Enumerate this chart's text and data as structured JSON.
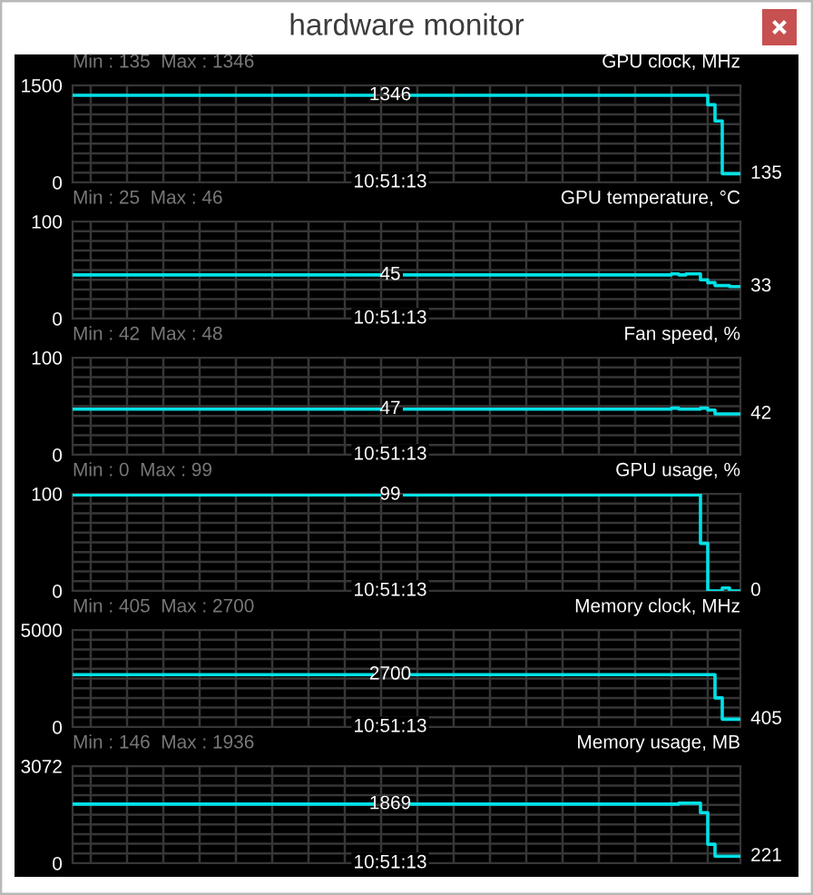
{
  "chart_data": [
    {
      "type": "other",
      "title": "hardware monitor"
    },
    {
      "type": "step",
      "title": "GPU clock, MHz",
      "subtitle": "Min : 135  Max : 1346",
      "color": "#00e1e6",
      "grid": true,
      "tick_labels": "y",
      "ylim": [
        0,
        1500
      ],
      "yticks": [
        0,
        {
          "value": 150,
          "label": null
        },
        {
          "value": 300,
          "label": null
        },
        {
          "value": 450,
          "label": null
        },
        {
          "value": 600,
          "label": null
        },
        {
          "value": 750,
          "label": null
        },
        {
          "value": 900,
          "label": null
        },
        {
          "value": 1050,
          "label": null
        },
        {
          "value": 1200,
          "label": null
        },
        {
          "value": 1350,
          "label": null
        },
        1500
      ],
      "categories": [
        null,
        null,
        null,
        null,
        null,
        null,
        null,
        null,
        null,
        null,
        null,
        null,
        null,
        null,
        null,
        null,
        null,
        null,
        null,
        null,
        null,
        null,
        null,
        null,
        null,
        null,
        null,
        null,
        null,
        null,
        null,
        null,
        null,
        null,
        null,
        null,
        null,
        null,
        null,
        null,
        null,
        null,
        null,
        null,
        null,
        null,
        null,
        null,
        null,
        null,
        null,
        null,
        null,
        null,
        null,
        null,
        null,
        null,
        null,
        null,
        null,
        null,
        null,
        null,
        null,
        null,
        null,
        null,
        null,
        null,
        null,
        null,
        null,
        null,
        null,
        null,
        null,
        null,
        null,
        null,
        null,
        null,
        null,
        null,
        null,
        null,
        null,
        null,
        null,
        null,
        null,
        null,
        null
      ],
      "values": [
        1346,
        1346,
        1346,
        1346,
        1346,
        1346,
        1346,
        1346,
        1346,
        1346,
        1346,
        1346,
        1346,
        1346,
        1346,
        1346,
        1346,
        1346,
        1346,
        1346,
        1346,
        1346,
        1346,
        1346,
        1346,
        1346,
        1346,
        1346,
        1346,
        1346,
        1346,
        1346,
        1346,
        1346,
        1346,
        1346,
        1346,
        1346,
        1346,
        1346,
        1346,
        1346,
        null,
        null,
        null,
        null,
        null,
        1346,
        1346,
        1346,
        1346,
        1346,
        1346,
        1346,
        1346,
        1346,
        1346,
        1346,
        1346,
        1346,
        1346,
        1346,
        1346,
        1346,
        1346,
        1346,
        1346,
        1346,
        1346,
        1346,
        1346,
        1346,
        1346,
        1346,
        1346,
        1346,
        1346,
        1346,
        1346,
        1346,
        1346,
        1346,
        1346,
        1346,
        1346,
        1346,
        1346,
        1346,
        1200,
        950,
        135,
        135,
        135
      ],
      "value_labels": [
        null,
        null,
        null,
        null,
        null,
        null,
        null,
        null,
        null,
        null,
        null,
        null,
        null,
        null,
        null,
        null,
        null,
        null,
        null,
        null,
        null,
        null,
        null,
        null,
        null,
        null,
        null,
        null,
        null,
        null,
        null,
        null,
        null,
        null,
        null,
        null,
        null,
        null,
        null,
        null,
        null,
        null,
        null,
        null,
        null,
        null,
        null,
        null,
        null,
        null,
        null,
        null,
        null,
        null,
        null,
        null,
        null,
        null,
        null,
        null,
        null,
        null,
        null,
        null,
        null,
        null,
        null,
        null,
        null,
        null,
        null,
        null,
        null,
        null,
        null,
        null,
        null,
        null,
        null,
        null,
        null,
        null,
        null,
        null,
        null,
        null,
        null,
        null,
        null,
        null,
        null,
        null,
        "135"
      ],
      "annotations": [
        "1346",
        "10:51:13"
      ]
    },
    {
      "type": "step",
      "title": "GPU temperature, °C",
      "subtitle": "Min : 25  Max : 46",
      "color": "#00e1e6",
      "grid": true,
      "tick_labels": "y",
      "ylim": [
        0,
        100
      ],
      "yticks": [
        0,
        {
          "value": 10,
          "label": null
        },
        {
          "value": 20,
          "label": null
        },
        {
          "value": 30,
          "label": null
        },
        {
          "value": 40,
          "label": null
        },
        {
          "value": 50,
          "label": null
        },
        {
          "value": 60,
          "label": null
        },
        {
          "value": 70,
          "label": null
        },
        {
          "value": 80,
          "label": null
        },
        {
          "value": 90,
          "label": null
        },
        100
      ],
      "categories": [
        null,
        null,
        null,
        null,
        null,
        null,
        null,
        null,
        null,
        null,
        null,
        null,
        null,
        null,
        null,
        null,
        null,
        null,
        null,
        null,
        null,
        null,
        null,
        null,
        null,
        null,
        null,
        null,
        null,
        null,
        null,
        null,
        null,
        null,
        null,
        null,
        null,
        null,
        null,
        null,
        null,
        null,
        null,
        null,
        null,
        null,
        null,
        null,
        null,
        null,
        null,
        null,
        null,
        null,
        null,
        null,
        null,
        null,
        null,
        null,
        null,
        null,
        null,
        null,
        null,
        null,
        null,
        null,
        null,
        null,
        null,
        null,
        null,
        null,
        null,
        null,
        null,
        null,
        null,
        null,
        null,
        null,
        null,
        null,
        null,
        null,
        null,
        null,
        null,
        null,
        null,
        null,
        null
      ],
      "values": [
        45,
        45,
        45,
        45,
        45,
        45,
        45,
        45,
        45,
        45,
        45,
        45,
        45,
        45,
        45,
        45,
        45,
        45,
        45,
        45,
        45,
        45,
        45,
        45,
        45,
        45,
        45,
        45,
        45,
        45,
        45,
        45,
        45,
        45,
        45,
        45,
        45,
        45,
        45,
        45,
        45,
        45,
        45,
        null,
        null,
        null,
        45,
        45,
        45,
        45,
        45,
        45,
        45,
        45,
        45,
        45,
        45,
        45,
        45,
        45,
        45,
        45,
        45,
        45,
        45,
        45,
        45,
        45,
        45,
        45,
        45,
        45,
        45,
        45,
        45,
        45,
        45,
        45,
        45,
        45,
        45,
        45,
        45,
        46,
        45,
        46,
        46,
        40,
        37,
        34,
        34,
        33,
        33
      ],
      "value_labels": [
        null,
        null,
        null,
        null,
        null,
        null,
        null,
        null,
        null,
        null,
        null,
        null,
        null,
        null,
        null,
        null,
        null,
        null,
        null,
        null,
        null,
        null,
        null,
        null,
        null,
        null,
        null,
        null,
        null,
        null,
        null,
        null,
        null,
        null,
        null,
        null,
        null,
        null,
        null,
        null,
        null,
        null,
        null,
        null,
        null,
        null,
        null,
        null,
        null,
        null,
        null,
        null,
        null,
        null,
        null,
        null,
        null,
        null,
        null,
        null,
        null,
        null,
        null,
        null,
        null,
        null,
        null,
        null,
        null,
        null,
        null,
        null,
        null,
        null,
        null,
        null,
        null,
        null,
        null,
        null,
        null,
        null,
        null,
        null,
        null,
        null,
        null,
        null,
        null,
        null,
        null,
        null,
        "33"
      ],
      "annotations": [
        "45",
        "10:51:13"
      ]
    },
    {
      "type": "step",
      "title": "Fan speed, %",
      "subtitle": "Min : 42  Max : 48",
      "color": "#00e1e6",
      "grid": true,
      "tick_labels": "y",
      "ylim": [
        0,
        100
      ],
      "yticks": [
        0,
        {
          "value": 10,
          "label": null
        },
        {
          "value": 20,
          "label": null
        },
        {
          "value": 30,
          "label": null
        },
        {
          "value": 40,
          "label": null
        },
        {
          "value": 50,
          "label": null
        },
        {
          "value": 60,
          "label": null
        },
        {
          "value": 70,
          "label": null
        },
        {
          "value": 80,
          "label": null
        },
        {
          "value": 90,
          "label": null
        },
        100
      ],
      "categories": [
        null,
        null,
        null,
        null,
        null,
        null,
        null,
        null,
        null,
        null,
        null,
        null,
        null,
        null,
        null,
        null,
        null,
        null,
        null,
        null,
        null,
        null,
        null,
        null,
        null,
        null,
        null,
        null,
        null,
        null,
        null,
        null,
        null,
        null,
        null,
        null,
        null,
        null,
        null,
        null,
        null,
        null,
        null,
        null,
        null,
        null,
        null,
        null,
        null,
        null,
        null,
        null,
        null,
        null,
        null,
        null,
        null,
        null,
        null,
        null,
        null,
        null,
        null,
        null,
        null,
        null,
        null,
        null,
        null,
        null,
        null,
        null,
        null,
        null,
        null,
        null,
        null,
        null,
        null,
        null,
        null,
        null,
        null,
        null,
        null,
        null,
        null,
        null,
        null,
        null,
        null,
        null,
        null
      ],
      "values": [
        47,
        47,
        47,
        47,
        47,
        47,
        47,
        47,
        47,
        47,
        47,
        47,
        47,
        47,
        47,
        47,
        47,
        47,
        47,
        47,
        47,
        47,
        47,
        47,
        47,
        47,
        47,
        47,
        47,
        47,
        47,
        47,
        47,
        47,
        47,
        47,
        47,
        47,
        47,
        47,
        47,
        47,
        47,
        null,
        null,
        null,
        47,
        47,
        47,
        47,
        47,
        47,
        47,
        47,
        47,
        47,
        47,
        47,
        47,
        47,
        47,
        47,
        47,
        47,
        47,
        47,
        47,
        47,
        47,
        47,
        47,
        47,
        47,
        47,
        47,
        47,
        47,
        47,
        47,
        47,
        47,
        47,
        47,
        48,
        47,
        47,
        47,
        48,
        46,
        42,
        42,
        42,
        42
      ],
      "value_labels": [
        null,
        null,
        null,
        null,
        null,
        null,
        null,
        null,
        null,
        null,
        null,
        null,
        null,
        null,
        null,
        null,
        null,
        null,
        null,
        null,
        null,
        null,
        null,
        null,
        null,
        null,
        null,
        null,
        null,
        null,
        null,
        null,
        null,
        null,
        null,
        null,
        null,
        null,
        null,
        null,
        null,
        null,
        null,
        null,
        null,
        null,
        null,
        null,
        null,
        null,
        null,
        null,
        null,
        null,
        null,
        null,
        null,
        null,
        null,
        null,
        null,
        null,
        null,
        null,
        null,
        null,
        null,
        null,
        null,
        null,
        null,
        null,
        null,
        null,
        null,
        null,
        null,
        null,
        null,
        null,
        null,
        null,
        null,
        null,
        null,
        null,
        null,
        null,
        null,
        null,
        null,
        null,
        "42"
      ],
      "annotations": [
        "47",
        "10:51:13"
      ]
    },
    {
      "type": "step",
      "title": "GPU usage, %",
      "subtitle": "Min : 0  Max : 99",
      "color": "#00e1e6",
      "grid": true,
      "tick_labels": "y",
      "ylim": [
        0,
        100
      ],
      "yticks": [
        0,
        {
          "value": 10,
          "label": null
        },
        {
          "value": 20,
          "label": null
        },
        {
          "value": 30,
          "label": null
        },
        {
          "value": 40,
          "label": null
        },
        {
          "value": 50,
          "label": null
        },
        {
          "value": 60,
          "label": null
        },
        {
          "value": 70,
          "label": null
        },
        {
          "value": 80,
          "label": null
        },
        {
          "value": 90,
          "label": null
        },
        100
      ],
      "categories": [
        null,
        null,
        null,
        null,
        null,
        null,
        null,
        null,
        null,
        null,
        null,
        null,
        null,
        null,
        null,
        null,
        null,
        null,
        null,
        null,
        null,
        null,
        null,
        null,
        null,
        null,
        null,
        null,
        null,
        null,
        null,
        null,
        null,
        null,
        null,
        null,
        null,
        null,
        null,
        null,
        null,
        null,
        null,
        null,
        null,
        null,
        null,
        null,
        null,
        null,
        null,
        null,
        null,
        null,
        null,
        null,
        null,
        null,
        null,
        null,
        null,
        null,
        null,
        null,
        null,
        null,
        null,
        null,
        null,
        null,
        null,
        null,
        null,
        null,
        null,
        null,
        null,
        null,
        null,
        null,
        null,
        null,
        null,
        null,
        null,
        null,
        null,
        null,
        null,
        null,
        null,
        null,
        null
      ],
      "values": [
        99,
        99,
        99,
        99,
        99,
        99,
        99,
        99,
        99,
        99,
        99,
        99,
        99,
        99,
        99,
        99,
        99,
        99,
        99,
        99,
        99,
        99,
        99,
        99,
        99,
        99,
        99,
        99,
        99,
        99,
        99,
        99,
        99,
        99,
        99,
        99,
        99,
        99,
        99,
        99,
        99,
        99,
        99,
        null,
        null,
        null,
        99,
        99,
        99,
        99,
        99,
        99,
        99,
        99,
        99,
        99,
        99,
        99,
        99,
        99,
        99,
        99,
        99,
        99,
        99,
        99,
        99,
        99,
        99,
        99,
        99,
        99,
        99,
        99,
        99,
        99,
        99,
        99,
        99,
        99,
        99,
        99,
        99,
        99,
        99,
        99,
        99,
        49,
        0,
        0,
        3,
        0,
        0
      ],
      "value_labels": [
        null,
        null,
        null,
        null,
        null,
        null,
        null,
        null,
        null,
        null,
        null,
        null,
        null,
        null,
        null,
        null,
        null,
        null,
        null,
        null,
        null,
        null,
        null,
        null,
        null,
        null,
        null,
        null,
        null,
        null,
        null,
        null,
        null,
        null,
        null,
        null,
        null,
        null,
        null,
        null,
        null,
        null,
        null,
        null,
        null,
        null,
        null,
        null,
        null,
        null,
        null,
        null,
        null,
        null,
        null,
        null,
        null,
        null,
        null,
        null,
        null,
        null,
        null,
        null,
        null,
        null,
        null,
        null,
        null,
        null,
        null,
        null,
        null,
        null,
        null,
        null,
        null,
        null,
        null,
        null,
        null,
        null,
        null,
        null,
        null,
        null,
        null,
        null,
        null,
        null,
        null,
        null,
        "0"
      ],
      "annotations": [
        "99",
        "10:51:13"
      ]
    },
    {
      "type": "step",
      "title": "Memory clock, MHz",
      "subtitle": "Min : 405  Max : 2700",
      "color": "#00e1e6",
      "grid": true,
      "tick_labels": "y",
      "ylim": [
        0,
        5000
      ],
      "yticks": [
        0,
        {
          "value": 500,
          "label": null
        },
        {
          "value": 1000,
          "label": null
        },
        {
          "value": 1500,
          "label": null
        },
        {
          "value": 2000,
          "label": null
        },
        {
          "value": 2500,
          "label": null
        },
        {
          "value": 3000,
          "label": null
        },
        {
          "value": 3500,
          "label": null
        },
        {
          "value": 4000,
          "label": null
        },
        {
          "value": 4500,
          "label": null
        },
        5000
      ],
      "categories": [
        null,
        null,
        null,
        null,
        null,
        null,
        null,
        null,
        null,
        null,
        null,
        null,
        null,
        null,
        null,
        null,
        null,
        null,
        null,
        null,
        null,
        null,
        null,
        null,
        null,
        null,
        null,
        null,
        null,
        null,
        null,
        null,
        null,
        null,
        null,
        null,
        null,
        null,
        null,
        null,
        null,
        null,
        null,
        null,
        null,
        null,
        null,
        null,
        null,
        null,
        null,
        null,
        null,
        null,
        null,
        null,
        null,
        null,
        null,
        null,
        null,
        null,
        null,
        null,
        null,
        null,
        null,
        null,
        null,
        null,
        null,
        null,
        null,
        null,
        null,
        null,
        null,
        null,
        null,
        null,
        null,
        null,
        null,
        null,
        null,
        null,
        null,
        null,
        null,
        null,
        null,
        null,
        null
      ],
      "values": [
        2700,
        2700,
        2700,
        2700,
        2700,
        2700,
        2700,
        2700,
        2700,
        2700,
        2700,
        2700,
        2700,
        2700,
        2700,
        2700,
        2700,
        2700,
        2700,
        2700,
        2700,
        2700,
        2700,
        2700,
        2700,
        2700,
        2700,
        2700,
        2700,
        2700,
        2700,
        2700,
        2700,
        2700,
        2700,
        2700,
        2700,
        2700,
        2700,
        2700,
        2700,
        2700,
        null,
        null,
        null,
        null,
        null,
        2700,
        2700,
        2700,
        2700,
        2700,
        2700,
        2700,
        2700,
        2700,
        2700,
        2700,
        2700,
        2700,
        2700,
        2700,
        2700,
        2700,
        2700,
        2700,
        2700,
        2700,
        2700,
        2700,
        2700,
        2700,
        2700,
        2700,
        2700,
        2700,
        2700,
        2700,
        2700,
        2700,
        2700,
        2700,
        2700,
        2700,
        2700,
        2700,
        2700,
        2700,
        2700,
        1500,
        405,
        405,
        405
      ],
      "value_labels": [
        null,
        null,
        null,
        null,
        null,
        null,
        null,
        null,
        null,
        null,
        null,
        null,
        null,
        null,
        null,
        null,
        null,
        null,
        null,
        null,
        null,
        null,
        null,
        null,
        null,
        null,
        null,
        null,
        null,
        null,
        null,
        null,
        null,
        null,
        null,
        null,
        null,
        null,
        null,
        null,
        null,
        null,
        null,
        null,
        null,
        null,
        null,
        null,
        null,
        null,
        null,
        null,
        null,
        null,
        null,
        null,
        null,
        null,
        null,
        null,
        null,
        null,
        null,
        null,
        null,
        null,
        null,
        null,
        null,
        null,
        null,
        null,
        null,
        null,
        null,
        null,
        null,
        null,
        null,
        null,
        null,
        null,
        null,
        null,
        null,
        null,
        null,
        null,
        null,
        null,
        null,
        null,
        "405"
      ],
      "annotations": [
        "2700",
        "10:51:13"
      ]
    },
    {
      "type": "step",
      "title": "Memory usage, MB",
      "subtitle": "Min : 146  Max : 1936",
      "color": "#00e1e6",
      "grid": true,
      "tick_labels": "y",
      "ylim": [
        0,
        3072
      ],
      "yticks": [
        0,
        {
          "value": 307.2,
          "label": null
        },
        {
          "value": 614.4,
          "label": null
        },
        {
          "value": 921.6,
          "label": null
        },
        {
          "value": 1228.8,
          "label": null
        },
        {
          "value": 1536,
          "label": null
        },
        {
          "value": 1843.2,
          "label": null
        },
        {
          "value": 2150.4,
          "label": null
        },
        {
          "value": 2457.6,
          "label": null
        },
        {
          "value": 2764.8,
          "label": null
        },
        3072
      ],
      "categories": [
        null,
        null,
        null,
        null,
        null,
        null,
        null,
        null,
        null,
        null,
        null,
        null,
        null,
        null,
        null,
        null,
        null,
        null,
        null,
        null,
        null,
        null,
        null,
        null,
        null,
        null,
        null,
        null,
        null,
        null,
        null,
        null,
        null,
        null,
        null,
        null,
        null,
        null,
        null,
        null,
        null,
        null,
        null,
        null,
        null,
        null,
        null,
        null,
        null,
        null,
        null,
        null,
        null,
        null,
        null,
        null,
        null,
        null,
        null,
        null,
        null,
        null,
        null,
        null,
        null,
        null,
        null,
        null,
        null,
        null,
        null,
        null,
        null,
        null,
        null,
        null,
        null,
        null,
        null,
        null,
        null,
        null,
        null,
        null,
        null,
        null,
        null,
        null,
        null,
        null,
        null,
        null,
        null
      ],
      "values": [
        1869,
        1869,
        1869,
        1869,
        1869,
        1869,
        1869,
        1869,
        1869,
        1869,
        1869,
        1869,
        1869,
        1869,
        1869,
        1869,
        1869,
        1869,
        1869,
        1869,
        1869,
        1869,
        1869,
        1869,
        1869,
        1869,
        1869,
        1869,
        1869,
        1869,
        1869,
        1869,
        1869,
        1869,
        1869,
        1869,
        1869,
        1869,
        1869,
        1869,
        1869,
        1869,
        null,
        null,
        null,
        null,
        null,
        1869,
        1869,
        1869,
        1869,
        1869,
        1869,
        1869,
        1869,
        1869,
        1869,
        1869,
        1869,
        1869,
        1869,
        1869,
        1869,
        1869,
        1869,
        1869,
        1869,
        1869,
        1869,
        1869,
        1869,
        1869,
        1869,
        1869,
        1869,
        1869,
        1869,
        1869,
        1869,
        1869,
        1869,
        1869,
        1869,
        1869,
        1900,
        1900,
        1900,
        1600,
        600,
        221,
        221,
        221,
        221
      ],
      "value_labels": [
        null,
        null,
        null,
        null,
        null,
        null,
        null,
        null,
        null,
        null,
        null,
        null,
        null,
        null,
        null,
        null,
        null,
        null,
        null,
        null,
        null,
        null,
        null,
        null,
        null,
        null,
        null,
        null,
        null,
        null,
        null,
        null,
        null,
        null,
        null,
        null,
        null,
        null,
        null,
        null,
        null,
        null,
        null,
        null,
        null,
        null,
        null,
        null,
        null,
        null,
        null,
        null,
        null,
        null,
        null,
        null,
        null,
        null,
        null,
        null,
        null,
        null,
        null,
        null,
        null,
        null,
        null,
        null,
        null,
        null,
        null,
        null,
        null,
        null,
        null,
        null,
        null,
        null,
        null,
        null,
        null,
        null,
        null,
        null,
        null,
        null,
        null,
        null,
        null,
        null,
        null,
        null,
        "221"
      ],
      "annotations": [
        "1869",
        "10:51:13"
      ]
    }
  ]
}
